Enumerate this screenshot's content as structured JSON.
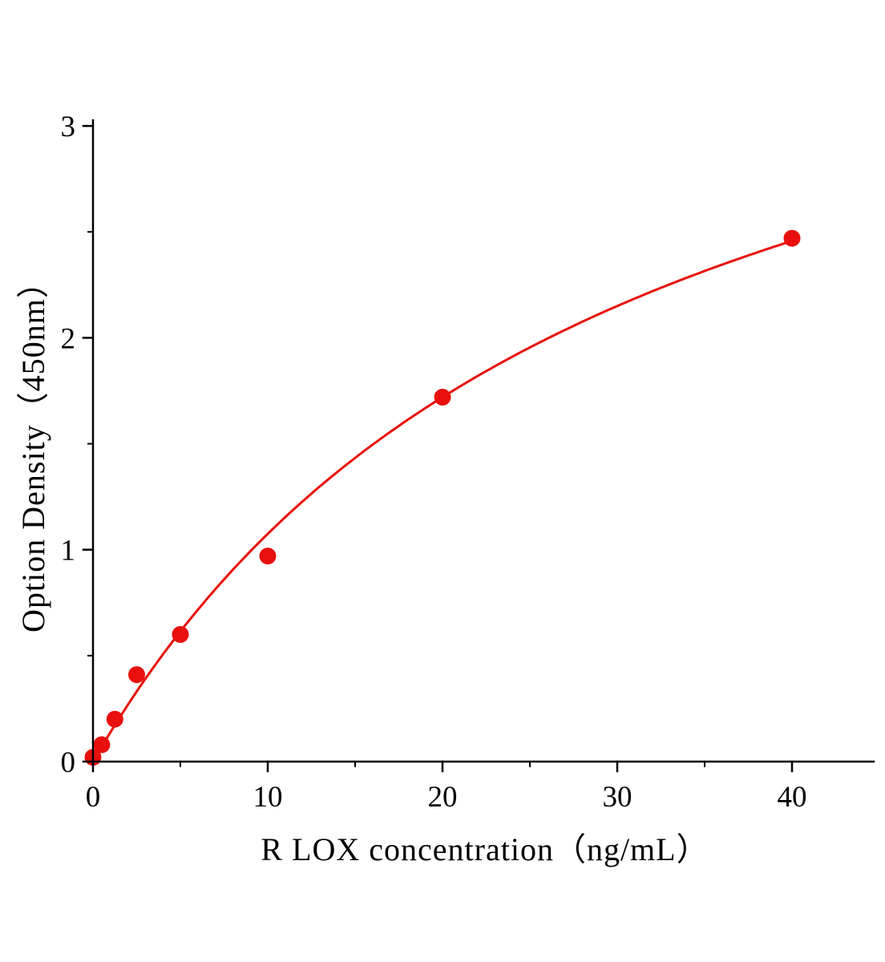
{
  "chart_data": {
    "type": "scatter",
    "title": "",
    "xlabel": "R LOX concentration（ng/mL）",
    "ylabel": "Option Density（450nm）",
    "x": [
      0,
      0.5,
      1.25,
      2.5,
      5,
      10,
      20,
      40
    ],
    "y": [
      0.02,
      0.08,
      0.2,
      0.41,
      0.6,
      0.97,
      1.72,
      2.47
    ],
    "xlim": [
      0,
      44.7
    ],
    "ylim": [
      0,
      3.03
    ],
    "x_ticks": [
      0,
      10,
      20,
      30,
      40
    ],
    "y_ticks": [
      0,
      1,
      2,
      3
    ],
    "x_minor_ticks": [
      5,
      15,
      25,
      35
    ],
    "y_minor_ticks": [
      0.5,
      1.5,
      2.5
    ],
    "grid": false,
    "legend": "none",
    "point_color": "#e8100c",
    "curve_color": "#e8100c",
    "axis_color": "#000000",
    "fit": {
      "type": "michaelis_menten",
      "vmax": 4.3,
      "km": 30
    }
  }
}
